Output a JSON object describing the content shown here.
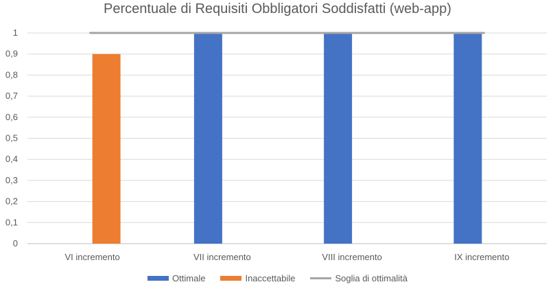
{
  "chart_data": {
    "type": "bar",
    "title": "Percentuale di Requisiti Obbligatori Soddisfatti (web-app)",
    "categories": [
      "VI incremento",
      "VII incremento",
      "VIII incremento",
      "IX incremento"
    ],
    "series": [
      {
        "name": "Ottimale",
        "type": "bar",
        "color": "#4472C4",
        "values": [
          null,
          1,
          1,
          1
        ]
      },
      {
        "name": "Inaccettabile",
        "type": "bar",
        "color": "#ED7D31",
        "values": [
          0.9,
          null,
          null,
          null
        ]
      },
      {
        "name": "Soglia di ottimalità",
        "type": "line",
        "color": "#A5A5A5",
        "values": [
          1,
          1,
          1,
          1
        ]
      }
    ],
    "yticks": [
      "0",
      "0,1",
      "0,2",
      "0,3",
      "0,4",
      "0,5",
      "0,6",
      "0,7",
      "0,8",
      "0,9",
      "1"
    ],
    "ylim": [
      0,
      1
    ],
    "grid": true,
    "legend_position": "bottom"
  }
}
